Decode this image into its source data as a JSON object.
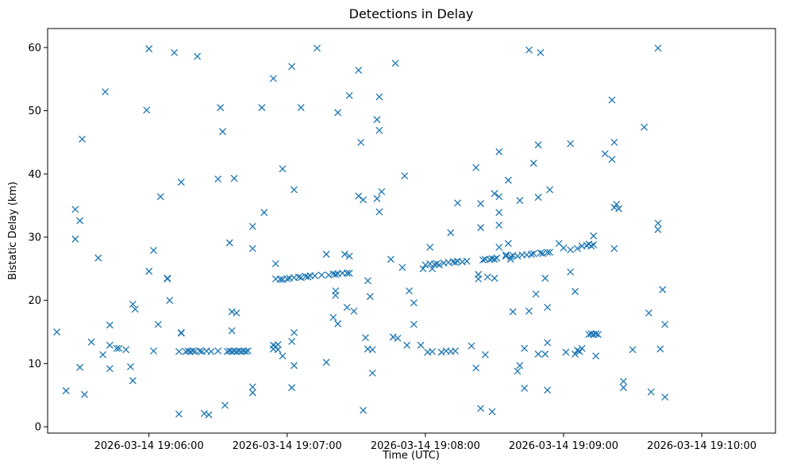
{
  "chart_data": {
    "type": "scatter",
    "title": "Detections in Delay",
    "xlabel": "Time (UTC)",
    "ylabel": "Bistatic Delay (km)",
    "marker": "x",
    "color": "#1f77b4",
    "grid": false,
    "x_ticks": [
      "2026-03-14 19:06:00",
      "2026-03-14 19:07:00",
      "2026-03-14 19:08:00",
      "2026-03-14 19:09:00",
      "2026-03-14 19:10:00"
    ],
    "y_ticks": [
      "0",
      "10",
      "20",
      "30",
      "40",
      "50",
      "60"
    ],
    "xlim": [
      "2026-03-14 19:05:16",
      "2026-03-14 19:10:32"
    ],
    "ylim": [
      -1,
      63
    ],
    "points": [
      [
        "19:05:20",
        15.0
      ],
      [
        "19:05:24",
        5.7
      ],
      [
        "19:05:28",
        29.7
      ],
      [
        "19:05:28",
        34.4
      ],
      [
        "19:05:30",
        32.6
      ],
      [
        "19:05:30",
        9.4
      ],
      [
        "19:05:31",
        45.5
      ],
      [
        "19:05:32",
        5.1
      ],
      [
        "19:05:35",
        13.4
      ],
      [
        "19:05:38",
        26.7
      ],
      [
        "19:05:40",
        11.4
      ],
      [
        "19:05:41",
        53.0
      ],
      [
        "19:05:43",
        16.1
      ],
      [
        "19:05:43",
        9.2
      ],
      [
        "19:05:43",
        12.9
      ],
      [
        "19:05:46",
        12.4
      ],
      [
        "19:05:47",
        12.4
      ],
      [
        "19:05:50",
        12.2
      ],
      [
        "19:05:52",
        9.5
      ],
      [
        "19:05:53",
        19.4
      ],
      [
        "19:05:53",
        7.3
      ],
      [
        "19:05:54",
        18.6
      ],
      [
        "19:05:59",
        50.1
      ],
      [
        "19:06:00",
        59.8
      ],
      [
        "19:06:00",
        24.6
      ],
      [
        "19:06:02",
        27.9
      ],
      [
        "19:06:02",
        12.0
      ],
      [
        "19:06:04",
        16.2
      ],
      [
        "19:06:05",
        36.4
      ],
      [
        "19:06:08",
        23.4
      ],
      [
        "19:06:08",
        23.5
      ],
      [
        "19:06:09",
        20.0
      ],
      [
        "19:06:11",
        59.2
      ],
      [
        "19:06:13",
        11.9
      ],
      [
        "19:06:13",
        2.0
      ],
      [
        "19:06:14",
        14.9
      ],
      [
        "19:06:14",
        38.7
      ],
      [
        "19:06:14",
        14.8
      ],
      [
        "19:06:16",
        11.9
      ],
      [
        "19:06:17",
        12.0
      ],
      [
        "19:06:18",
        11.9
      ],
      [
        "19:06:19",
        12.0
      ],
      [
        "19:06:20",
        11.9
      ],
      [
        "19:06:21",
        58.6
      ],
      [
        "19:06:22",
        12.0
      ],
      [
        "19:06:23",
        11.9
      ],
      [
        "19:06:24",
        2.1
      ],
      [
        "19:06:25",
        12.0
      ],
      [
        "19:06:26",
        1.9
      ],
      [
        "19:06:27",
        11.9
      ],
      [
        "19:06:30",
        12.0
      ],
      [
        "19:06:30",
        39.2
      ],
      [
        "19:06:31",
        50.5
      ],
      [
        "19:06:32",
        46.7
      ],
      [
        "19:06:33",
        3.4
      ],
      [
        "19:06:34",
        11.9
      ],
      [
        "19:06:35",
        29.1
      ],
      [
        "19:06:35",
        12.0
      ],
      [
        "19:06:36",
        15.2
      ],
      [
        "19:06:36",
        18.2
      ],
      [
        "19:06:36",
        11.9
      ],
      [
        "19:06:37",
        39.3
      ],
      [
        "19:06:37",
        12.0
      ],
      [
        "19:06:38",
        18.0
      ],
      [
        "19:06:38",
        11.9
      ],
      [
        "19:06:39",
        12.0
      ],
      [
        "19:06:40",
        11.9
      ],
      [
        "19:06:41",
        12.0
      ],
      [
        "19:06:42",
        11.9
      ],
      [
        "19:06:43",
        12.0
      ],
      [
        "19:06:45",
        6.3
      ],
      [
        "19:06:45",
        5.4
      ],
      [
        "19:06:45",
        28.2
      ],
      [
        "19:06:45",
        31.7
      ],
      [
        "19:06:49",
        50.5
      ],
      [
        "19:06:50",
        33.9
      ],
      [
        "19:06:54",
        55.1
      ],
      [
        "19:06:54",
        12.9
      ],
      [
        "19:06:54",
        12.3
      ],
      [
        "19:06:55",
        25.8
      ],
      [
        "19:06:55",
        23.4
      ],
      [
        "19:06:55",
        12.7
      ],
      [
        "19:06:56",
        13.0
      ],
      [
        "19:06:56",
        12.2
      ],
      [
        "19:06:57",
        23.3
      ],
      [
        "19:06:58",
        11.2
      ],
      [
        "19:06:58",
        40.8
      ],
      [
        "19:06:58",
        23.3
      ],
      [
        "19:07:00",
        23.4
      ],
      [
        "19:07:01",
        23.5
      ],
      [
        "19:07:02",
        6.2
      ],
      [
        "19:07:02",
        57.0
      ],
      [
        "19:07:02",
        13.5
      ],
      [
        "19:07:03",
        14.9
      ],
      [
        "19:07:03",
        9.7
      ],
      [
        "19:07:03",
        37.5
      ],
      [
        "19:07:03",
        23.6
      ],
      [
        "19:07:05",
        23.7
      ],
      [
        "19:07:06",
        23.6
      ],
      [
        "19:07:06",
        50.5
      ],
      [
        "19:07:08",
        23.8
      ],
      [
        "19:07:09",
        23.7
      ],
      [
        "19:07:10",
        23.9
      ],
      [
        "19:07:12",
        23.9
      ],
      [
        "19:07:13",
        59.9
      ],
      [
        "19:07:15",
        24.0
      ],
      [
        "19:07:17",
        10.2
      ],
      [
        "19:07:17",
        27.3
      ],
      [
        "19:07:18",
        24.0
      ],
      [
        "19:07:20",
        24.2
      ],
      [
        "19:07:20",
        17.3
      ],
      [
        "19:07:21",
        20.8
      ],
      [
        "19:07:21",
        21.5
      ],
      [
        "19:07:21",
        24.1
      ],
      [
        "19:07:22",
        49.7
      ],
      [
        "19:07:22",
        16.3
      ],
      [
        "19:07:22",
        24.2
      ],
      [
        "19:07:24",
        24.3
      ],
      [
        "19:07:25",
        27.3
      ],
      [
        "19:07:26",
        24.3
      ],
      [
        "19:07:26",
        18.9
      ],
      [
        "19:07:27",
        52.4
      ],
      [
        "19:07:27",
        27.0
      ],
      [
        "19:07:27",
        24.3
      ],
      [
        "19:07:29",
        18.3
      ],
      [
        "19:07:31",
        56.4
      ],
      [
        "19:07:31",
        36.5
      ],
      [
        "19:07:32",
        45.0
      ],
      [
        "19:07:33",
        35.9
      ],
      [
        "19:07:33",
        2.6
      ],
      [
        "19:07:34",
        14.1
      ],
      [
        "19:07:35",
        23.1
      ],
      [
        "19:07:35",
        12.3
      ],
      [
        "19:07:36",
        20.6
      ],
      [
        "19:07:37",
        12.2
      ],
      [
        "19:07:37",
        8.5
      ],
      [
        "19:07:39",
        48.6
      ],
      [
        "19:07:39",
        36.1
      ],
      [
        "19:07:40",
        34.0
      ],
      [
        "19:07:40",
        52.2
      ],
      [
        "19:07:40",
        46.9
      ],
      [
        "19:07:41",
        37.2
      ],
      [
        "19:07:45",
        26.5
      ],
      [
        "19:07:46",
        14.2
      ],
      [
        "19:07:47",
        57.5
      ],
      [
        "19:07:48",
        14.0
      ],
      [
        "19:07:50",
        25.2
      ],
      [
        "19:07:51",
        39.7
      ],
      [
        "19:07:52",
        12.9
      ],
      [
        "19:07:53",
        21.5
      ],
      [
        "19:07:55",
        19.6
      ],
      [
        "19:07:55",
        16.2
      ],
      [
        "19:07:58",
        12.9
      ],
      [
        "19:07:59",
        25.0
      ],
      [
        "19:08:00",
        25.6
      ],
      [
        "19:08:01",
        11.8
      ],
      [
        "19:08:02",
        25.8
      ],
      [
        "19:08:02",
        28.4
      ],
      [
        "19:08:03",
        11.9
      ],
      [
        "19:08:03",
        25.0
      ],
      [
        "19:08:04",
        25.7
      ],
      [
        "19:08:05",
        25.8
      ],
      [
        "19:08:06",
        25.6
      ],
      [
        "19:08:07",
        11.8
      ],
      [
        "19:08:08",
        25.9
      ],
      [
        "19:08:09",
        12.0
      ],
      [
        "19:08:10",
        26.0
      ],
      [
        "19:08:11",
        11.9
      ],
      [
        "19:08:11",
        30.7
      ],
      [
        "19:08:12",
        26.1
      ],
      [
        "19:08:13",
        12.0
      ],
      [
        "19:08:13",
        26.0
      ],
      [
        "19:08:14",
        35.4
      ],
      [
        "19:08:14",
        26.2
      ],
      [
        "19:08:16",
        26.1
      ],
      [
        "19:08:18",
        26.2
      ],
      [
        "19:08:20",
        12.8
      ],
      [
        "19:08:22",
        41.0
      ],
      [
        "19:08:22",
        9.3
      ],
      [
        "19:08:23",
        23.4
      ],
      [
        "19:08:23",
        24.1
      ],
      [
        "19:08:24",
        31.5
      ],
      [
        "19:08:24",
        2.9
      ],
      [
        "19:08:24",
        35.3
      ],
      [
        "19:08:25",
        26.4
      ],
      [
        "19:08:26",
        11.4
      ],
      [
        "19:08:26",
        26.5
      ],
      [
        "19:08:27",
        23.7
      ],
      [
        "19:08:28",
        26.5
      ],
      [
        "19:08:29",
        2.4
      ],
      [
        "19:08:29",
        26.6
      ],
      [
        "19:08:30",
        36.9
      ],
      [
        "19:08:30",
        23.5
      ],
      [
        "19:08:30",
        26.5
      ],
      [
        "19:08:31",
        26.7
      ],
      [
        "19:08:32",
        43.5
      ],
      [
        "19:08:32",
        36.4
      ],
      [
        "19:08:32",
        33.9
      ],
      [
        "19:08:32",
        31.9
      ],
      [
        "19:08:32",
        28.4
      ],
      [
        "19:08:35",
        27.0
      ],
      [
        "19:08:35",
        27.2
      ],
      [
        "19:08:36",
        39.0
      ],
      [
        "19:08:36",
        29.0
      ],
      [
        "19:08:37",
        26.9
      ],
      [
        "19:08:37",
        26.5
      ],
      [
        "19:08:38",
        18.2
      ],
      [
        "19:08:38",
        27.1
      ],
      [
        "19:08:40",
        8.8
      ],
      [
        "19:08:40",
        27.0
      ],
      [
        "19:08:41",
        9.7
      ],
      [
        "19:08:41",
        35.8
      ],
      [
        "19:08:42",
        27.2
      ],
      [
        "19:08:43",
        12.4
      ],
      [
        "19:08:43",
        6.1
      ],
      [
        "19:08:44",
        27.2
      ],
      [
        "19:08:45",
        59.6
      ],
      [
        "19:08:45",
        18.3
      ],
      [
        "19:08:46",
        27.3
      ],
      [
        "19:08:47",
        41.7
      ],
      [
        "19:08:47",
        27.4
      ],
      [
        "19:08:48",
        21.0
      ],
      [
        "19:08:49",
        36.3
      ],
      [
        "19:08:49",
        11.5
      ],
      [
        "19:08:49",
        44.6
      ],
      [
        "19:08:50",
        59.2
      ],
      [
        "19:08:50",
        27.5
      ],
      [
        "19:08:51",
        27.4
      ],
      [
        "19:08:52",
        23.5
      ],
      [
        "19:08:52",
        11.5
      ],
      [
        "19:08:53",
        27.6
      ],
      [
        "19:08:53",
        13.3
      ],
      [
        "19:08:53",
        18.9
      ],
      [
        "19:08:53",
        5.8
      ],
      [
        "19:08:54",
        37.5
      ],
      [
        "19:08:54",
        27.6
      ],
      [
        "19:08:58",
        29.0
      ],
      [
        "19:09:00",
        28.3
      ],
      [
        "19:09:01",
        11.8
      ],
      [
        "19:09:03",
        24.5
      ],
      [
        "19:09:03",
        44.8
      ],
      [
        "19:09:03",
        28.0
      ],
      [
        "19:09:05",
        21.4
      ],
      [
        "19:09:05",
        11.5
      ],
      [
        "19:09:06",
        28.2
      ],
      [
        "19:09:06",
        12.1
      ],
      [
        "19:09:07",
        11.9
      ],
      [
        "19:09:08",
        12.4
      ],
      [
        "19:09:08",
        28.6
      ],
      [
        "19:09:10",
        28.7
      ],
      [
        "19:09:11",
        14.6
      ],
      [
        "19:09:11",
        28.9
      ],
      [
        "19:09:12",
        14.7
      ],
      [
        "19:09:12",
        28.6
      ],
      [
        "19:09:13",
        14.6
      ],
      [
        "19:09:13",
        30.2
      ],
      [
        "19:09:13",
        28.8
      ],
      [
        "19:09:14",
        14.7
      ],
      [
        "19:09:14",
        11.2
      ],
      [
        "19:09:15",
        14.6
      ],
      [
        "19:09:18",
        43.2
      ],
      [
        "19:09:21",
        51.7
      ],
      [
        "19:09:21",
        42.3
      ],
      [
        "19:09:22",
        34.7
      ],
      [
        "19:09:22",
        28.2
      ],
      [
        "19:09:22",
        45.0
      ],
      [
        "19:09:23",
        35.2
      ],
      [
        "19:09:24",
        34.5
      ],
      [
        "19:09:26",
        7.2
      ],
      [
        "19:09:26",
        6.2
      ],
      [
        "19:09:30",
        12.2
      ],
      [
        "19:09:35",
        47.4
      ],
      [
        "19:09:37",
        18.0
      ],
      [
        "19:09:38",
        5.5
      ],
      [
        "19:09:41",
        59.9
      ],
      [
        "19:09:41",
        32.2
      ],
      [
        "19:09:41",
        31.2
      ],
      [
        "19:09:42",
        12.3
      ],
      [
        "19:09:43",
        21.7
      ],
      [
        "19:09:44",
        16.2
      ],
      [
        "19:09:44",
        4.7
      ]
    ]
  }
}
